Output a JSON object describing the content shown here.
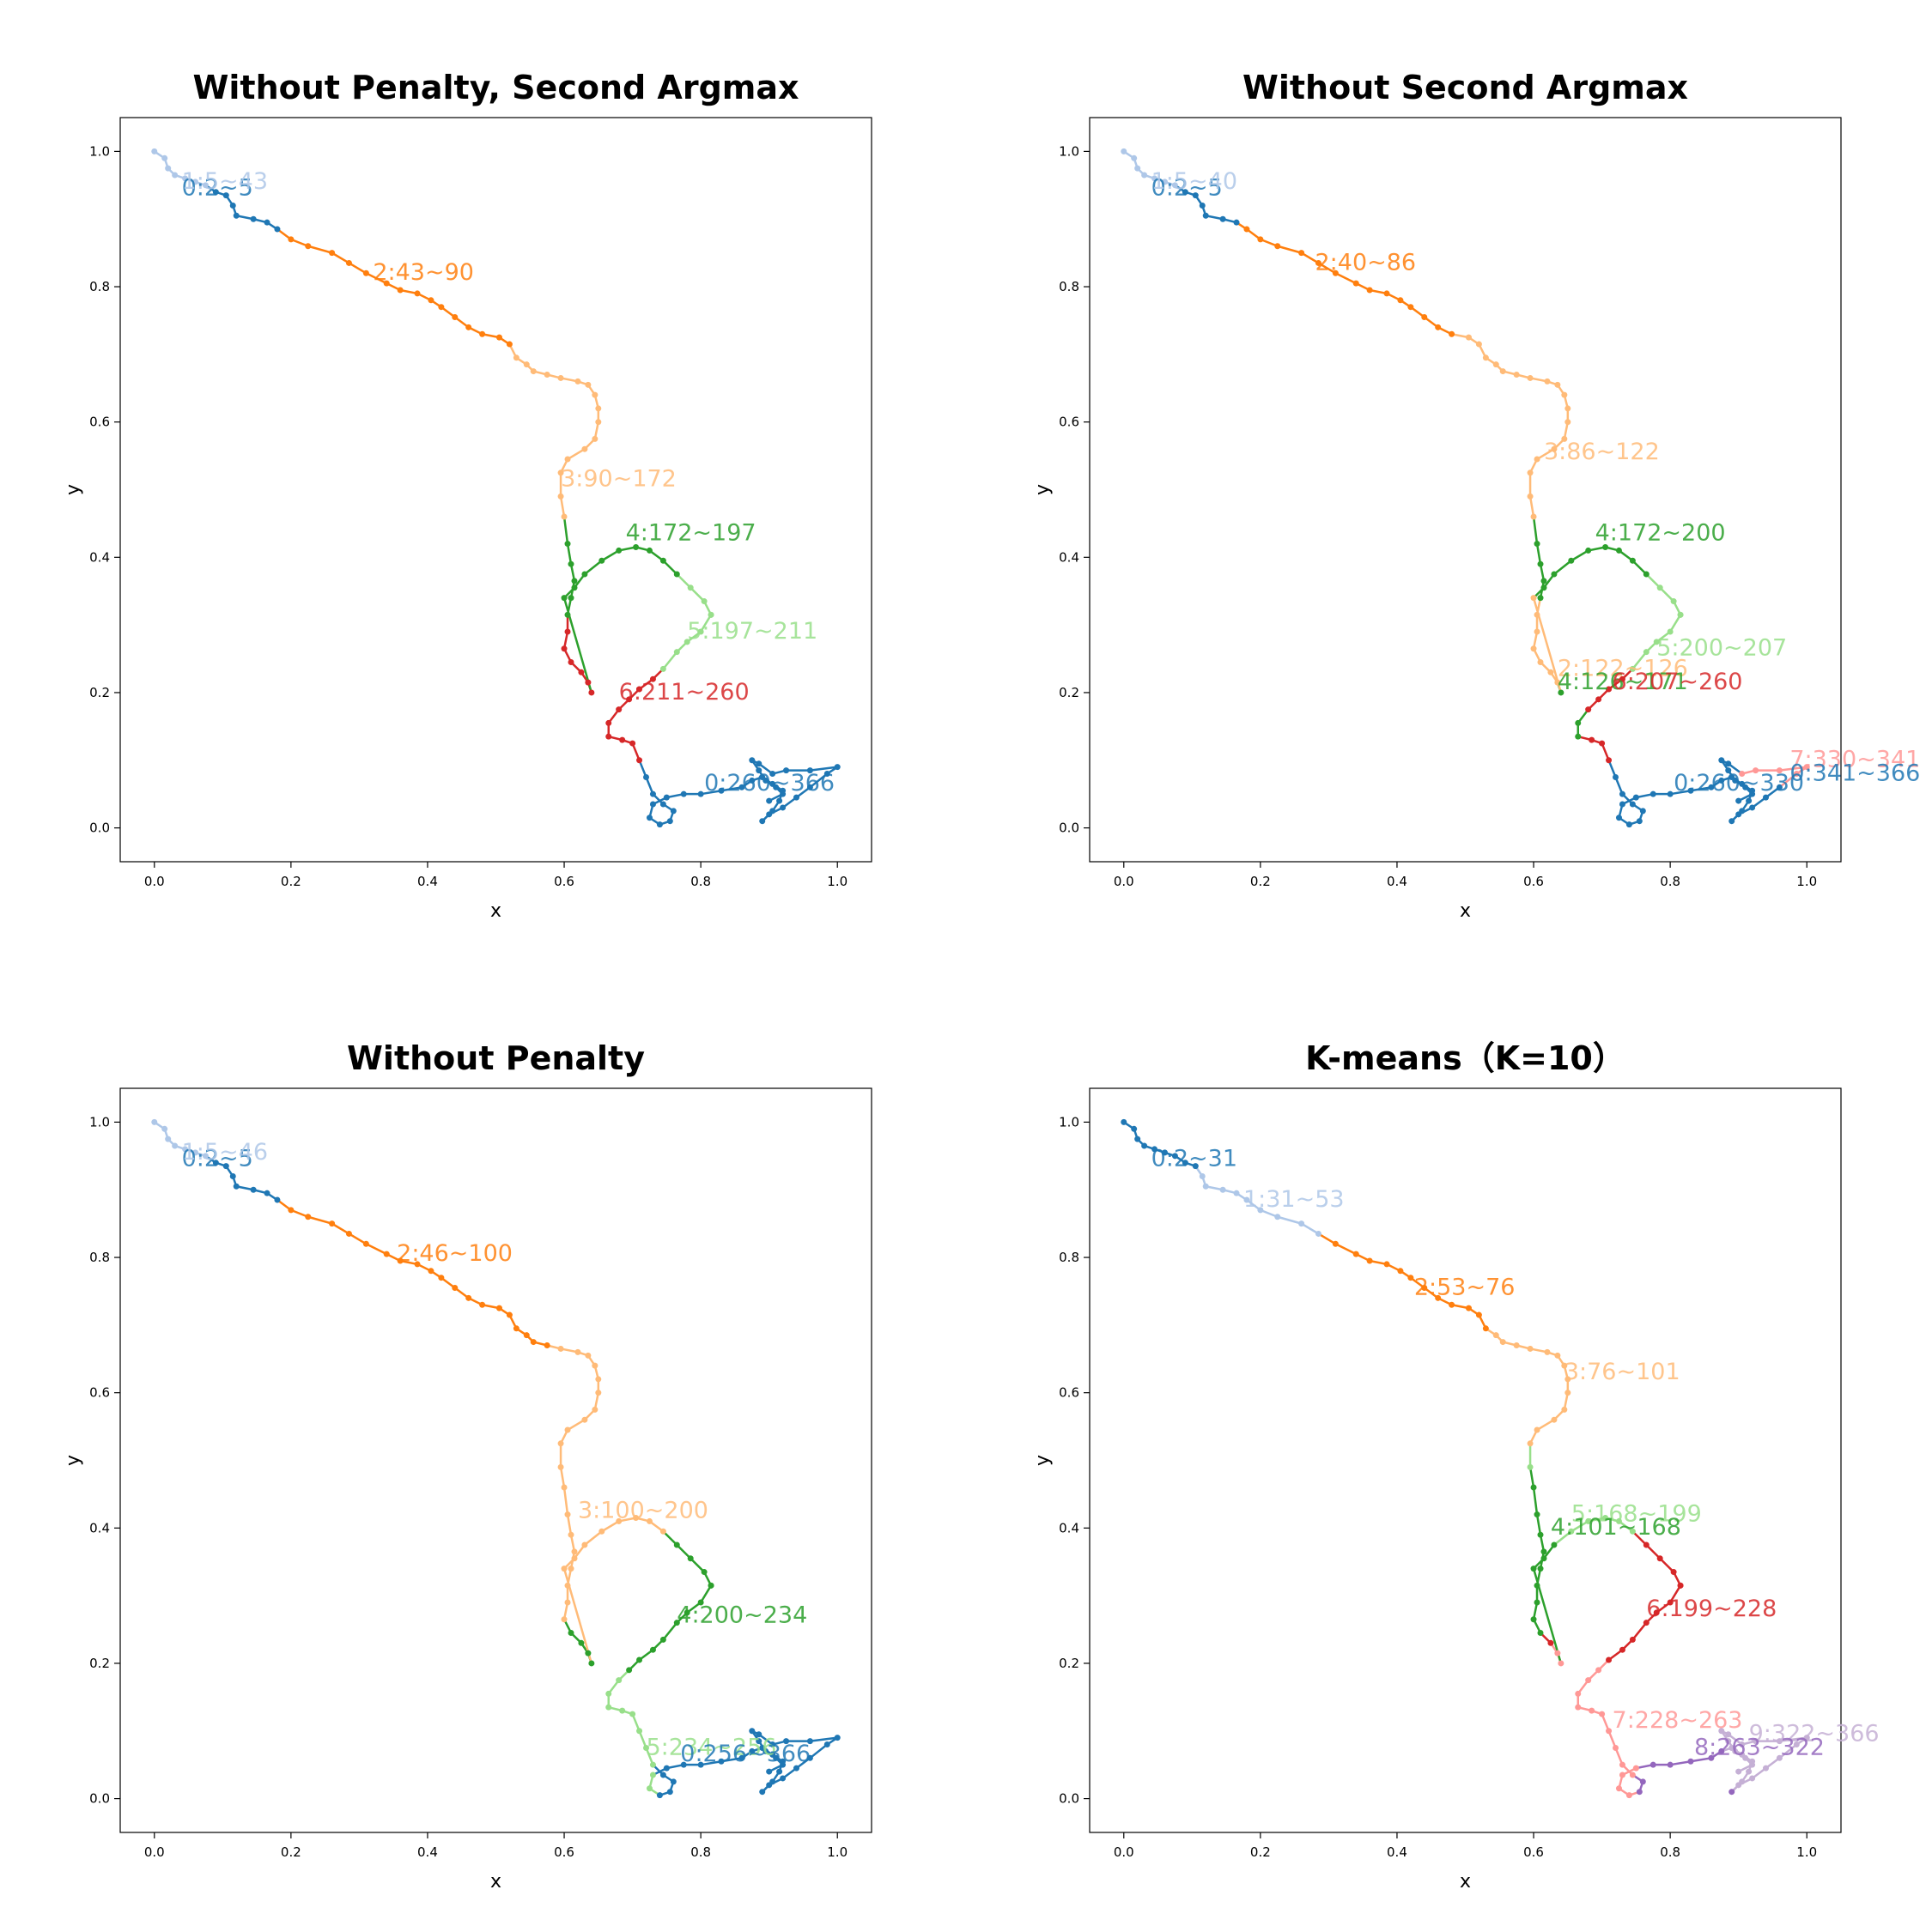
{
  "colors": [
    "#1f77b4",
    "#aec7e8",
    "#ff7f0e",
    "#ffbb78",
    "#2ca02c",
    "#98df8a",
    "#d62728",
    "#ff9896",
    "#9467bd",
    "#c5b0d5"
  ],
  "chart_data": [
    {
      "type": "scatter",
      "title": "Without Penalty, Second Argmax",
      "xlabel": "x",
      "ylabel": "y",
      "xlim": [
        -0.05,
        1.05
      ],
      "ylim": [
        -0.05,
        1.05
      ],
      "xticks": [
        "0.0",
        "0.2",
        "0.4",
        "0.6",
        "0.8",
        "1.0"
      ],
      "yticks": [
        "0.0",
        "0.2",
        "0.4",
        "0.6",
        "0.8",
        "1.0"
      ],
      "segments": [
        {
          "label": "0:2~5",
          "color": 0,
          "x": 0.04,
          "y": 0.935
        },
        {
          "label": "1:5~43",
          "color": 1,
          "x": 0.04,
          "y": 0.945
        },
        {
          "label": "2:43~90",
          "color": 2,
          "x": 0.32,
          "y": 0.81
        },
        {
          "label": "3:90~172",
          "color": 3,
          "x": 0.595,
          "y": 0.505
        },
        {
          "label": "4:172~197",
          "color": 4,
          "x": 0.69,
          "y": 0.425
        },
        {
          "label": "5:197~211",
          "color": 5,
          "x": 0.78,
          "y": 0.28
        },
        {
          "label": "6:211~260",
          "color": 6,
          "x": 0.68,
          "y": 0.19
        },
        {
          "label": "0:260~366",
          "color": 0,
          "x": 0.805,
          "y": 0.055
        }
      ]
    },
    {
      "type": "scatter",
      "title": "Without Second Argmax",
      "xlabel": "x",
      "ylabel": "y",
      "xlim": [
        -0.05,
        1.05
      ],
      "ylim": [
        -0.05,
        1.05
      ],
      "xticks": [
        "0.0",
        "0.2",
        "0.4",
        "0.6",
        "0.8",
        "1.0"
      ],
      "yticks": [
        "0.0",
        "0.2",
        "0.4",
        "0.6",
        "0.8",
        "1.0"
      ],
      "segments": [
        {
          "label": "0:2~5",
          "color": 0,
          "x": 0.04,
          "y": 0.935
        },
        {
          "label": "1:5~40",
          "color": 1,
          "x": 0.04,
          "y": 0.945
        },
        {
          "label": "2:40~86",
          "color": 2,
          "x": 0.28,
          "y": 0.825
        },
        {
          "label": "3:86~122",
          "color": 3,
          "x": 0.615,
          "y": 0.545
        },
        {
          "label": "4:172~200",
          "color": 4,
          "x": 0.69,
          "y": 0.425
        },
        {
          "label": "5:200~207",
          "color": 5,
          "x": 0.78,
          "y": 0.255
        },
        {
          "label": "2:122~126",
          "color": 3,
          "x": 0.635,
          "y": 0.225
        },
        {
          "label": "4:126~171",
          "color": 4,
          "x": 0.635,
          "y": 0.205
        },
        {
          "label": "6:207~260",
          "color": 6,
          "x": 0.715,
          "y": 0.205
        },
        {
          "label": "0:260~330",
          "color": 0,
          "x": 0.805,
          "y": 0.055
        },
        {
          "label": "7:330~341",
          "color": 7,
          "x": 0.975,
          "y": 0.09
        },
        {
          "label": "0:341~366",
          "color": 0,
          "x": 0.975,
          "y": 0.07
        }
      ]
    },
    {
      "type": "scatter",
      "title": "Without Penalty",
      "xlabel": "x",
      "ylabel": "y",
      "xlim": [
        -0.05,
        1.05
      ],
      "ylim": [
        -0.05,
        1.05
      ],
      "xticks": [
        "0.0",
        "0.2",
        "0.4",
        "0.6",
        "0.8",
        "1.0"
      ],
      "yticks": [
        "0.0",
        "0.2",
        "0.4",
        "0.6",
        "0.8",
        "1.0"
      ],
      "segments": [
        {
          "label": "0:2~5",
          "color": 0,
          "x": 0.04,
          "y": 0.935
        },
        {
          "label": "1:5~46",
          "color": 1,
          "x": 0.04,
          "y": 0.945
        },
        {
          "label": "2:46~100",
          "color": 2,
          "x": 0.355,
          "y": 0.795
        },
        {
          "label": "3:100~200",
          "color": 3,
          "x": 0.62,
          "y": 0.415
        },
        {
          "label": "4:200~234",
          "color": 4,
          "x": 0.765,
          "y": 0.26
        },
        {
          "label": "5:234~256",
          "color": 5,
          "x": 0.72,
          "y": 0.065
        },
        {
          "label": "0:256~366",
          "color": 0,
          "x": 0.77,
          "y": 0.055
        }
      ]
    },
    {
      "type": "scatter",
      "title": "K-means（K=10）",
      "xlabel": "x",
      "ylabel": "y",
      "xlim": [
        -0.05,
        1.05
      ],
      "ylim": [
        -0.05,
        1.05
      ],
      "xticks": [
        "0.0",
        "0.2",
        "0.4",
        "0.6",
        "0.8",
        "1.0"
      ],
      "yticks": [
        "0.0",
        "0.2",
        "0.4",
        "0.6",
        "0.8",
        "1.0"
      ],
      "segments": [
        {
          "label": "0:2~31",
          "color": 0,
          "x": 0.04,
          "y": 0.935
        },
        {
          "label": "1:31~53",
          "color": 1,
          "x": 0.175,
          "y": 0.875
        },
        {
          "label": "2:53~76",
          "color": 2,
          "x": 0.425,
          "y": 0.745
        },
        {
          "label": "3:76~101",
          "color": 3,
          "x": 0.645,
          "y": 0.62
        },
        {
          "label": "5:168~199",
          "color": 5,
          "x": 0.655,
          "y": 0.41
        },
        {
          "label": "4:101~168",
          "color": 4,
          "x": 0.625,
          "y": 0.39
        },
        {
          "label": "6:199~228",
          "color": 6,
          "x": 0.765,
          "y": 0.27
        },
        {
          "label": "7:228~263",
          "color": 7,
          "x": 0.715,
          "y": 0.105
        },
        {
          "label": "9:322~366",
          "color": 9,
          "x": 0.915,
          "y": 0.085
        },
        {
          "label": "8:263~322",
          "color": 8,
          "x": 0.835,
          "y": 0.065
        }
      ]
    }
  ]
}
